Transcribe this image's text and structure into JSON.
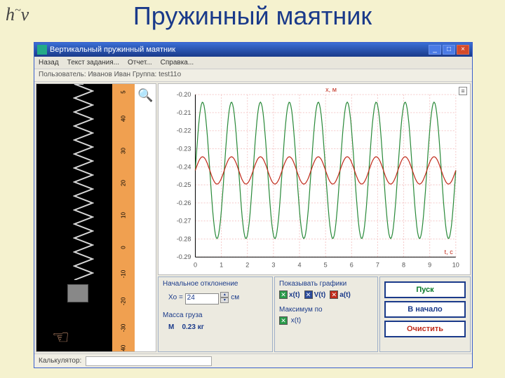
{
  "logo": {
    "base": "h",
    "sup": "ν",
    "tilde": "~"
  },
  "page_title": "Пружинный маятник",
  "window": {
    "title": "Вертикальный пружинный маятник",
    "menu": [
      "Назад",
      "Текст задания...",
      "Отчет...",
      "Справка..."
    ],
    "userline": "Пользователь: Иванов  Иван  Группа: test11o",
    "win_btns": {
      "min": "_",
      "max": "□",
      "close": "×"
    }
  },
  "ruler": {
    "bg": "#f0a050",
    "ticks": [
      {
        "label": "5",
        "pos_pct": 2
      },
      {
        "label": "40",
        "pos_pct": 12
      },
      {
        "label": "30",
        "pos_pct": 24
      },
      {
        "label": "20",
        "pos_pct": 36
      },
      {
        "label": "10",
        "pos_pct": 48
      },
      {
        "label": "0",
        "pos_pct": 60
      },
      {
        "label": "-10",
        "pos_pct": 70
      },
      {
        "label": "-20",
        "pos_pct": 80
      },
      {
        "label": "-30",
        "pos_pct": 90
      },
      {
        "label": "-40",
        "pos_pct": 98
      }
    ],
    "weight_top_pct": 75
  },
  "chart": {
    "y_axis_label": "x, м",
    "x_axis_label": "t, с",
    "y_ticks": [
      "-0.20",
      "-0.21",
      "-0.22",
      "-0.23",
      "-0.24",
      "-0.25",
      "-0.26",
      "-0.27",
      "-0.28",
      "-0.29"
    ],
    "x_ticks": [
      "0",
      "1",
      "2",
      "3",
      "4",
      "5",
      "6",
      "7",
      "8",
      "9",
      "10"
    ],
    "grid_color": "#f5caca",
    "series": [
      {
        "name": "x(t)",
        "color": "#2a8a3a",
        "amp": 60,
        "freq": 9,
        "center_y_idx": 4.2
      },
      {
        "name": "a(t)",
        "color": "#c02a1a",
        "amp": 12,
        "freq": 9,
        "center_y_idx": 4.2
      }
    ],
    "corner_icon": "≡"
  },
  "controls": {
    "left": {
      "group1_title": "Начальное отклонение",
      "xo_label": "Xo =",
      "xo_value": "24",
      "xo_unit": "см",
      "group2_title": "Масса груза",
      "m_label": "M",
      "m_value": "0.23 кг"
    },
    "mid": {
      "group1_title": "Показывать графики",
      "checks": [
        {
          "label": "x(t)",
          "color": "green",
          "on": true
        },
        {
          "label": "V(t)",
          "color": "blue",
          "on": true
        },
        {
          "label": "a(t)",
          "color": "red",
          "on": true
        }
      ],
      "group2_title": "Максимум по",
      "max_check": {
        "label": "x(t)",
        "color": "green",
        "on": true
      }
    },
    "right": {
      "btn_start": "Пуск",
      "btn_reset": "В начало",
      "btn_clear": "Очистить"
    }
  },
  "status": {
    "label": "Калькулятор:"
  }
}
